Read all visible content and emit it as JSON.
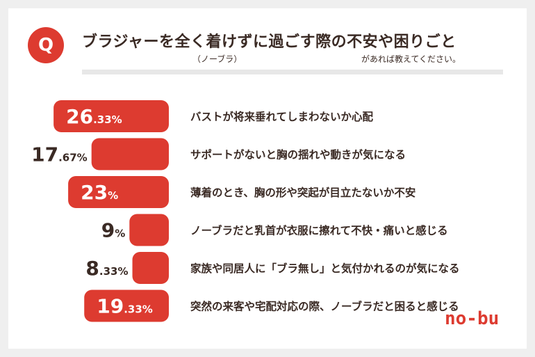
{
  "question": {
    "badge": "Q",
    "title": "ブラジャーを全く着けずに過ごす際の不安や困りごと",
    "ruby_left": "（ノーブラ）",
    "ruby_right": "があれば教えてください。"
  },
  "brand": "no-bu",
  "colors": {
    "accent": "#dd3b30",
    "text": "#3a2a24"
  },
  "chart_data": {
    "type": "bar",
    "orientation": "horizontal",
    "categories": [
      "バストが将来垂れてしまわないか心配",
      "サポートがないと胸の揺れや動きが気になる",
      "薄着のとき、胸の形や突起が目立たないか不安",
      "ノーブラだと乳首が衣服に擦れて不快・痛いと感じる",
      "家族や同居人に「ブラ無し」と気付かれるのが気になる",
      "突然の来客や宅配対応の際、ノーブラだと困ると感じる"
    ],
    "values": [
      26.33,
      17.67,
      23,
      9,
      8.33,
      19.33
    ],
    "labels": [
      {
        "int": "26",
        "dec": ".33%"
      },
      {
        "int": "17",
        "dec": ".67%"
      },
      {
        "int": "23",
        "dec": "%"
      },
      {
        "int": "9",
        "dec": "%"
      },
      {
        "int": "8",
        "dec": ".33%"
      },
      {
        "int": "19",
        "dec": ".33%"
      }
    ],
    "unit": "%",
    "color": "#dd3b30"
  }
}
